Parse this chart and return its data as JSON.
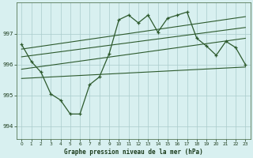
{
  "title": "Graphe pression niveau de la mer (hPa)",
  "bg_color": "#cce8e8",
  "plot_bg_color": "#d8f0f0",
  "grid_color": "#aacccc",
  "line_color": "#2d5a2d",
  "xlim": [
    -0.5,
    23.5
  ],
  "ylim": [
    993.6,
    998.0
  ],
  "yticks": [
    994,
    995,
    996,
    997
  ],
  "xticks": [
    0,
    1,
    2,
    3,
    4,
    5,
    6,
    7,
    8,
    9,
    10,
    11,
    12,
    13,
    14,
    15,
    16,
    17,
    18,
    19,
    20,
    21,
    22,
    23
  ],
  "main_line": [
    996.65,
    996.1,
    995.75,
    995.05,
    994.85,
    994.4,
    994.4,
    995.35,
    995.6,
    996.35,
    997.45,
    997.6,
    997.35,
    997.6,
    997.05,
    997.5,
    997.6,
    997.7,
    996.85,
    996.6,
    996.3,
    996.75,
    996.55,
    996.0
  ],
  "trend_lines": [
    [
      [
        0,
        23
      ],
      [
        996.5,
        997.55
      ]
    ],
    [
      [
        0,
        23
      ],
      [
        996.25,
        997.2
      ]
    ],
    [
      [
        0,
        23
      ],
      [
        995.85,
        996.85
      ]
    ],
    [
      [
        0,
        23
      ],
      [
        995.55,
        995.92
      ]
    ]
  ]
}
